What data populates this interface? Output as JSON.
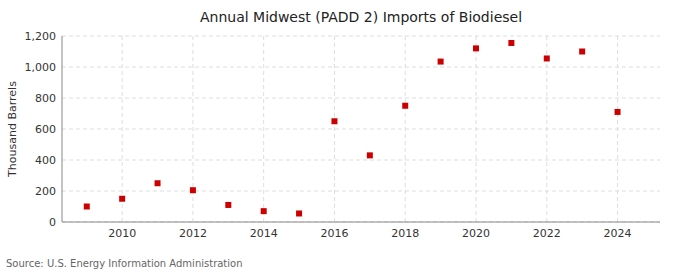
{
  "chart_data": {
    "type": "scatter",
    "title": "Annual Midwest (PADD 2) Imports of Biodiesel",
    "y_label": "Thousand Barrels",
    "annotations": [
      "Source: U.S. Energy Information Administration"
    ],
    "x": [
      2009,
      2010,
      2011,
      2012,
      2013,
      2014,
      2015,
      2016,
      2017,
      2018,
      2019,
      2020,
      2021,
      2022,
      2023,
      2024
    ],
    "values": [
      100,
      150,
      250,
      205,
      110,
      70,
      55,
      650,
      430,
      750,
      1035,
      1120,
      1155,
      1055,
      1100,
      710
    ],
    "color": "#cc0000",
    "marker": "square",
    "xlim": [
      2008.3,
      2025.2
    ],
    "xticks": [
      2010,
      2012,
      2014,
      2016,
      2018,
      2020,
      2022,
      2024
    ],
    "ylim": [
      0,
      1200
    ],
    "yticks": [
      0,
      200,
      400,
      600,
      800,
      {
        "value": 1000,
        "label": "1,000"
      },
      {
        "value": 1200,
        "label": "1,200"
      }
    ],
    "grid": true
  }
}
